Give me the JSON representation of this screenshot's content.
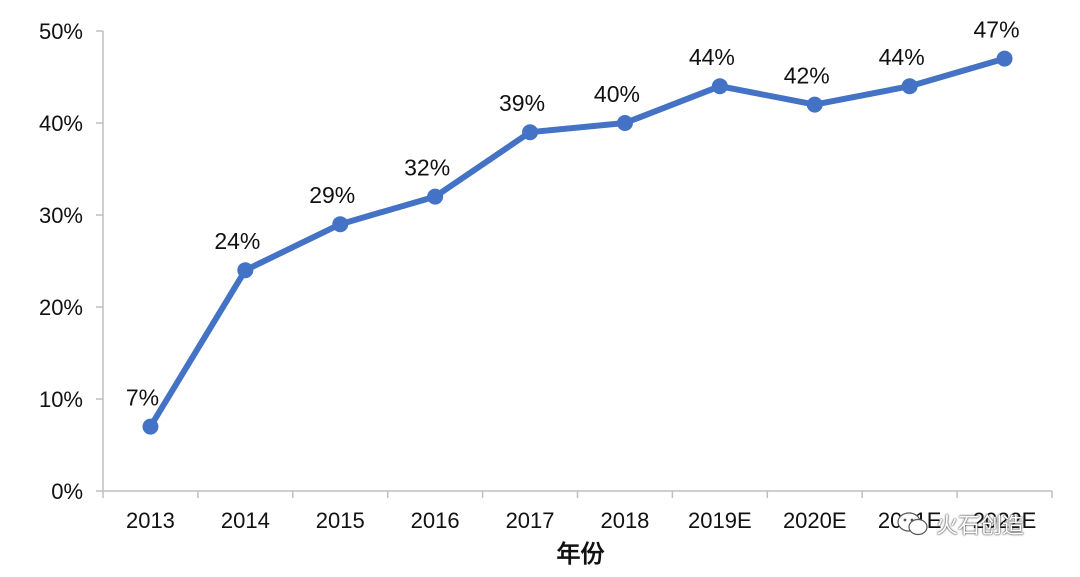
{
  "chart_data": {
    "type": "line",
    "title": "",
    "xlabel": "年份",
    "ylabel": "",
    "categories": [
      "2013",
      "2014",
      "2015",
      "2016",
      "2017",
      "2018",
      "2019E",
      "2020E",
      "2021E",
      "2022E"
    ],
    "series": [
      {
        "values": [
          7,
          24,
          29,
          32,
          39,
          40,
          44,
          42,
          44,
          47
        ],
        "data_labels": [
          "7%",
          "24%",
          "29%",
          "32%",
          "39%",
          "40%",
          "44%",
          "42%",
          "44%",
          "47%"
        ],
        "color": "#4472C4"
      }
    ],
    "ylim": [
      0,
      50
    ],
    "yticks": [
      0,
      10,
      20,
      30,
      40,
      50
    ],
    "ytick_labels": [
      "0%",
      "10%",
      "20%",
      "30%",
      "40%",
      "50%"
    ],
    "grid": false,
    "legend": "none"
  },
  "watermark": {
    "text": "火石创造",
    "icon": "wechat-logo-icon"
  }
}
